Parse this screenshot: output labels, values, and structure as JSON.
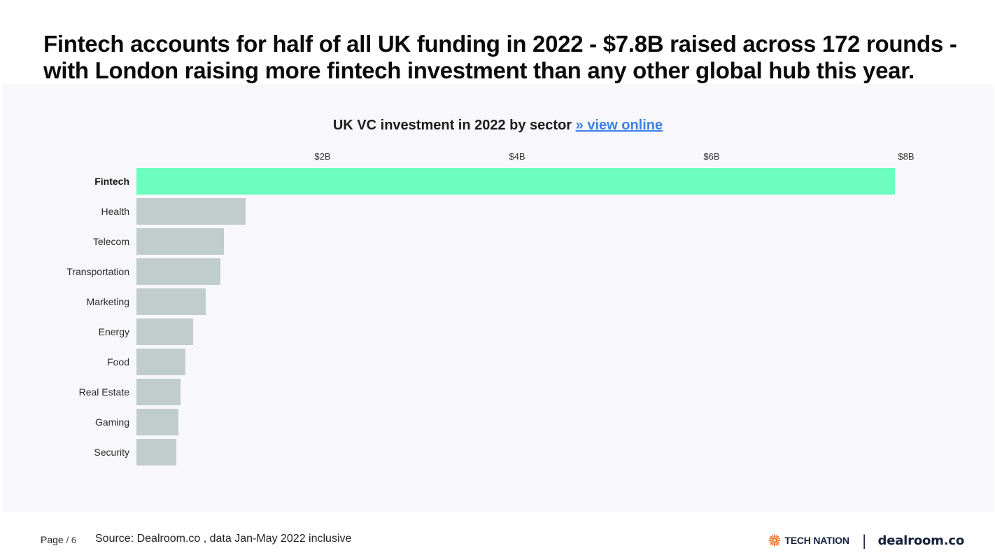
{
  "headline": {
    "line1": "Fintech accounts for half of all UK funding in 2022 - $7.8B raised across 172 rounds -",
    "line2": "with London raising more fintech investment than any other global hub this year."
  },
  "chart": {
    "title": "UK VC investment in 2022 by sector",
    "link_label": "» view online",
    "ticks": [
      {
        "label": "$2B",
        "value": 2
      },
      {
        "label": "$4B",
        "value": 4
      },
      {
        "label": "$6B",
        "value": 6
      },
      {
        "label": "$8B",
        "value": 8
      }
    ],
    "colors": {
      "highlight": "#6cfdbf",
      "default": "#c1cdca",
      "panel_bg": "#f8f8fc",
      "link": "#3c82e6"
    }
  },
  "chart_data": {
    "type": "bar",
    "orientation": "horizontal",
    "title": "UK VC investment in 2022 by sector",
    "xlabel": "",
    "ylabel": "",
    "xlim": [
      0,
      8
    ],
    "x_tick_labels": [
      "$2B",
      "$4B",
      "$6B",
      "$8B"
    ],
    "grid": false,
    "legend": null,
    "categories": [
      "Fintech",
      "Health",
      "Telecom",
      "Transportation",
      "Marketing",
      "Energy",
      "Food",
      "Real Estate",
      "Gaming",
      "Security"
    ],
    "values": [
      7.8,
      1.12,
      0.9,
      0.86,
      0.71,
      0.58,
      0.5,
      0.45,
      0.43,
      0.41
    ],
    "units": "USD billions",
    "highlighted": "Fintech"
  },
  "footer": {
    "page_label": "Page",
    "page_number": "/ 6",
    "source": "Source: Dealroom.co , data Jan-May 2022 inclusive",
    "logo_tech_nation": "TECH NATION",
    "logo_separator": "|",
    "logo_dealroom": "dealroom.co"
  }
}
